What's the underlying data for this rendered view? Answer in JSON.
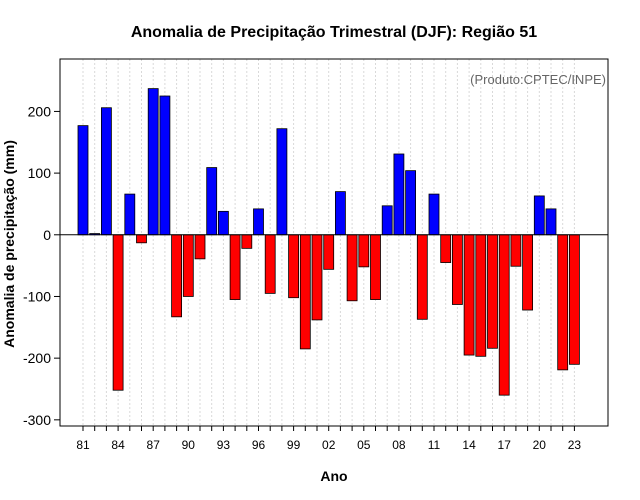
{
  "chart_data": {
    "type": "bar",
    "title": "Anomalia de Precipitação Trimestral (DJF): Região 51",
    "xlabel": "Ano",
    "ylabel": "Anomalia de precipitação (mm)",
    "credit": "(Produto:CPTEC/INPE)",
    "ylim": [
      -310,
      285
    ],
    "yticks": [
      -300,
      -200,
      -100,
      0,
      100,
      200
    ],
    "grid": true,
    "colors": {
      "positive": "#0000ff",
      "negative": "#ff0000",
      "zero_line": "#000000",
      "grid": "#d9d9d9",
      "frame": "#000000"
    },
    "categories": [
      "81",
      "82",
      "83",
      "84",
      "85",
      "86",
      "87",
      "88",
      "89",
      "90",
      "91",
      "92",
      "93",
      "94",
      "95",
      "96",
      "97",
      "98",
      "99",
      "00",
      "01",
      "02",
      "03",
      "04",
      "05",
      "06",
      "07",
      "08",
      "09",
      "10",
      "11",
      "12",
      "13",
      "14",
      "15",
      "16",
      "17",
      "18",
      "19",
      "20",
      "21",
      "22",
      "23"
    ],
    "tick_labels": [
      "81",
      "84",
      "87",
      "90",
      "93",
      "96",
      "99",
      "02",
      "05",
      "08",
      "11",
      "14",
      "17",
      "20",
      "23"
    ],
    "values": [
      177,
      2,
      206,
      -252,
      66,
      -13,
      237,
      225,
      -133,
      -100,
      -39,
      109,
      38,
      -105,
      -22,
      42,
      -95,
      172,
      -102,
      -185,
      -138,
      -56,
      70,
      -107,
      -52,
      -105,
      47,
      131,
      104,
      -137,
      66,
      -45,
      -113,
      -195,
      -197,
      -184,
      -260,
      -51,
      -122,
      63,
      42,
      -219,
      -210
    ]
  }
}
